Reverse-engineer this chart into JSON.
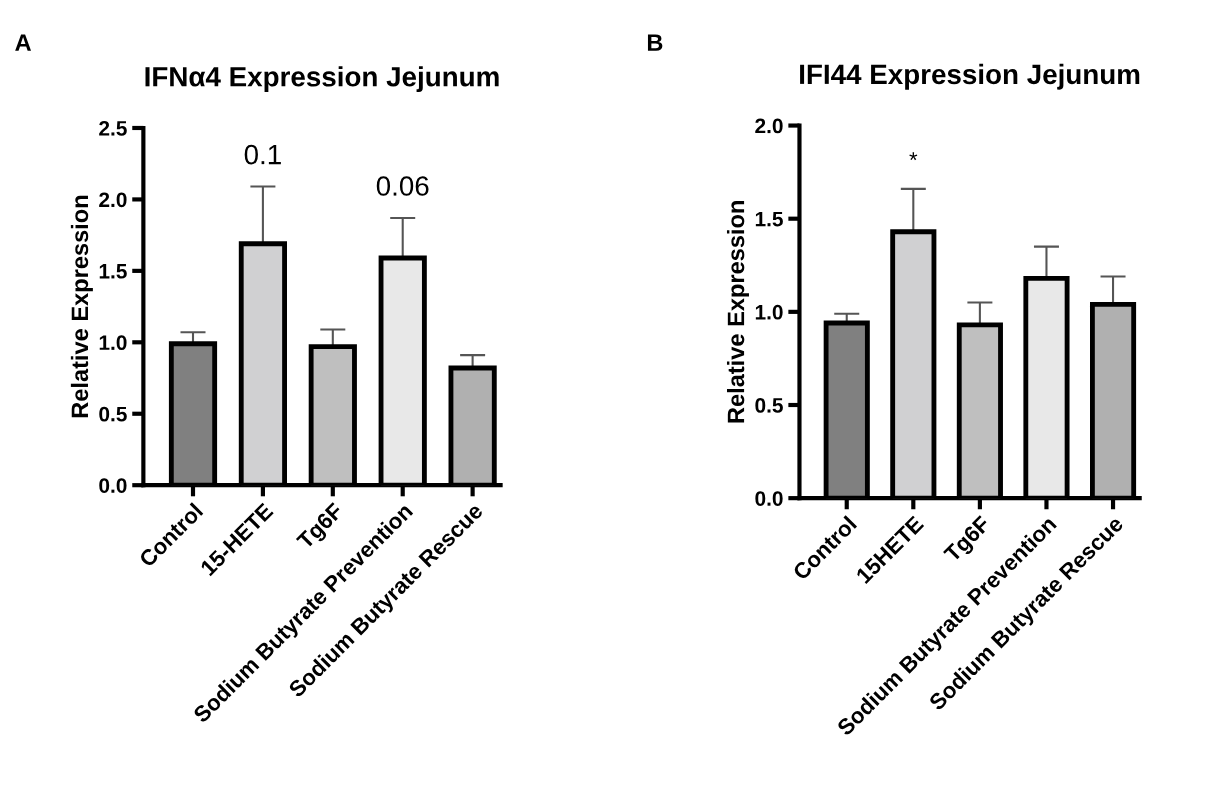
{
  "chart_data": [
    {
      "type": "bar",
      "title": "IFNα4 Expression Jejunum",
      "ylabel": "Relative Expression",
      "categories": [
        "Control",
        "15-HETE",
        "Tg6F",
        "Sodium Butyrate Prevention",
        "Sodium Butyrate Rescue"
      ],
      "values": [
        0.99,
        1.69,
        0.97,
        1.59,
        0.82
      ],
      "errors": [
        [
          0.99,
          1.07
        ],
        [
          1.69,
          2.09
        ],
        [
          0.97,
          1.09
        ],
        [
          1.59,
          1.87
        ],
        [
          0.82,
          0.91
        ]
      ],
      "colors": [
        "#808080",
        "#d0d0d2",
        "#bfbfbf",
        "#e8e8e8",
        "#b0b0b0"
      ],
      "ylim": [
        0,
        2.5
      ],
      "yticks": [
        {
          "value": 0,
          "label": "0.0"
        },
        0.5,
        {
          "value": 1,
          "label": "1.0"
        },
        1.5,
        {
          "value": 2,
          "label": "2.0"
        },
        2.5
      ],
      "annotations": [
        "A",
        {
          "text": "0.1",
          "x": "15-HETE",
          "y": 2.09
        },
        {
          "text": "0.06",
          "x": "Sodium Butyrate Prevention",
          "y": 1.87
        }
      ]
    },
    {
      "type": "bar",
      "title": "IFI44 Expression Jejunum",
      "ylabel": "Relative Expression",
      "categories": [
        "Control",
        "15HETE",
        "Tg6F",
        "Sodium Butyrate Prevention",
        "Sodium Butyrate Rescue"
      ],
      "values": [
        0.94,
        1.43,
        0.93,
        1.18,
        1.04
      ],
      "errors": [
        [
          0.94,
          0.99
        ],
        [
          1.43,
          1.66
        ],
        [
          0.93,
          1.05
        ],
        [
          1.18,
          1.35
        ],
        [
          1.04,
          1.19
        ]
      ],
      "colors": [
        "#808080",
        "#d0d0d2",
        "#bfbfbf",
        "#e8e8e8",
        "#b0b0b0"
      ],
      "ylim": [
        0,
        2.0
      ],
      "yticks": [
        {
          "value": 0,
          "label": "0.0"
        },
        0.5,
        {
          "value": 1,
          "label": "1.0"
        },
        1.5,
        {
          "value": 2,
          "label": "2.0"
        }
      ],
      "annotations": [
        "B",
        {
          "text": "*",
          "x": "15HETE",
          "y": 1.66
        }
      ]
    }
  ]
}
